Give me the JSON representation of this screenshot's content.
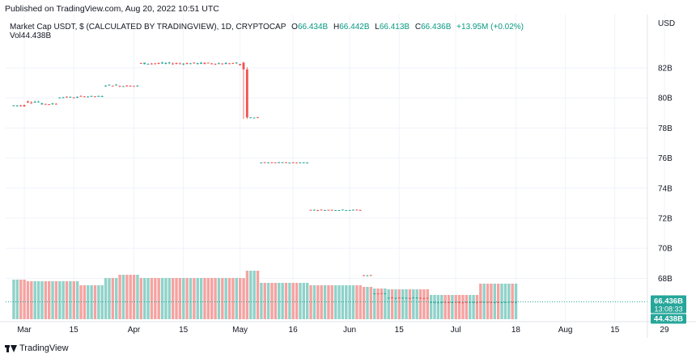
{
  "header": {
    "published": "Published on TradingView.com, Aug 20, 2022 10:51 UTC"
  },
  "legend": {
    "symbol": "Market Cap USDT, $ (CALCULATED BY TRADINGVIEW), 1D, CRYPTOCAP",
    "o_label": "O",
    "o_value": "66.434B",
    "h_label": "H",
    "h_value": "66.442B",
    "l_label": "L",
    "l_value": "66.413B",
    "c_label": "C",
    "c_value": "66.436B",
    "change": "+13.95M (+0.02%)",
    "vol_label": "Vol",
    "vol_value": "44.438B"
  },
  "footer": {
    "brand": "TradingView"
  },
  "colors": {
    "up": "#26a69a",
    "down": "#ef5350",
    "up_vol": "#8fd2c9",
    "down_vol": "#f5a3a1",
    "grid": "#f0f3fa",
    "axis_text": "#131722"
  },
  "chart_data": {
    "type": "candlestick",
    "currency_label": "USD",
    "y_ticks": [
      "82B",
      "80B",
      "78B",
      "76B",
      "74B",
      "72B",
      "70B",
      "68B"
    ],
    "ylim": [
      65.2,
      83.6
    ],
    "x_ticks": [
      {
        "label": "Mar",
        "day": 0
      },
      {
        "label": "15",
        "day": 14
      },
      {
        "label": "Apr",
        "day": 31
      },
      {
        "label": "15",
        "day": 45
      },
      {
        "label": "May",
        "day": 61
      },
      {
        "label": "16",
        "day": 76
      },
      {
        "label": "Jun",
        "day": 92
      },
      {
        "label": "15",
        "day": 106
      },
      {
        "label": "Jul",
        "day": 122
      },
      {
        "label": "18",
        "day": 139
      },
      {
        "label": "Aug",
        "day": 153
      },
      {
        "label": "15",
        "day": 167
      },
      {
        "label": "29",
        "day": 181
      }
    ],
    "last_price_label": "66.436B",
    "countdown_label": "13:08:33",
    "last_volume_label": "44.438B",
    "segments": [
      {
        "from": -3,
        "to": 0,
        "price": 79.5,
        "vol": 49,
        "var": 0.15
      },
      {
        "from": 1,
        "to": 4,
        "price": 79.75,
        "vol": 47,
        "var": 0.15
      },
      {
        "from": 5,
        "to": 9,
        "price": 79.6,
        "vol": 47,
        "var": 0.1
      },
      {
        "from": 10,
        "to": 15,
        "price": 80.05,
        "vol": 47,
        "var": 0.08
      },
      {
        "from": 16,
        "to": 22,
        "price": 80.1,
        "vol": 42,
        "var": 0.08
      },
      {
        "from": 23,
        "to": 26,
        "price": 80.85,
        "vol": 51,
        "var": 0.1
      },
      {
        "from": 27,
        "to": 32,
        "price": 80.8,
        "vol": 55,
        "var": 0.1
      },
      {
        "from": 33,
        "to": 60,
        "price": 82.3,
        "vol": 51,
        "var": 0.12
      },
      {
        "from": 61,
        "to": 62,
        "price": 82.2,
        "vol": 51,
        "var": 0.2
      },
      {
        "from": 63,
        "to": 66,
        "price": 78.7,
        "vol": 60,
        "var": 0.03
      },
      {
        "from": 67,
        "to": 80,
        "price": 75.7,
        "vol": 45,
        "var": 0.05
      },
      {
        "from": 81,
        "to": 95,
        "price": 72.55,
        "vol": 42,
        "var": 0.05
      },
      {
        "from": 96,
        "to": 98,
        "price": 68.2,
        "vol": 40,
        "var": 0.05
      },
      {
        "from": 99,
        "to": 102,
        "price": 67.0,
        "vol": 38,
        "var": 0.05
      },
      {
        "from": 103,
        "to": 114,
        "price": 66.7,
        "vol": 37,
        "var": 0.05
      },
      {
        "from": 115,
        "to": 128,
        "price": 66.4,
        "vol": 30,
        "var": 0.05
      },
      {
        "from": 129,
        "to": 139,
        "price": 66.42,
        "vol": 44,
        "var": 0.04
      }
    ],
    "special_candles": [
      {
        "day": 62,
        "open": 82.35,
        "high": 82.4,
        "low": 78.6,
        "close": 81.9
      },
      {
        "day": 63,
        "open": 81.9,
        "high": 82.05,
        "low": 78.6,
        "close": 78.7
      }
    ]
  }
}
